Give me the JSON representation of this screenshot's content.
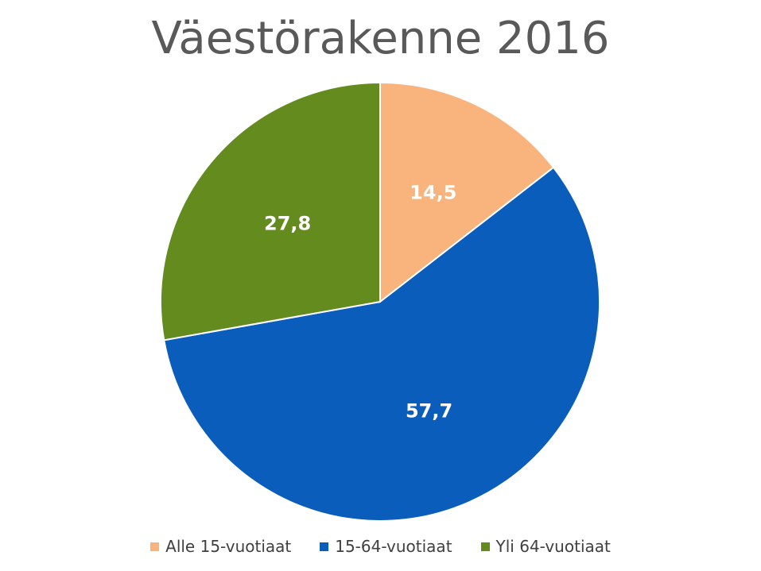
{
  "chart_data": {
    "type": "pie",
    "title": "Väestörakenne 2016",
    "categories": [
      "Alle 15-vuotiaat",
      "15-64-vuotiaat",
      "Yli 64-vuotiaat"
    ],
    "values": [
      14.5,
      57.7,
      27.8
    ],
    "value_labels": [
      "14,5",
      "57,7",
      "27,8"
    ],
    "colors": [
      "#F8B47C",
      "#0A5DBA",
      "#638B1E"
    ],
    "legend_position": "bottom"
  }
}
